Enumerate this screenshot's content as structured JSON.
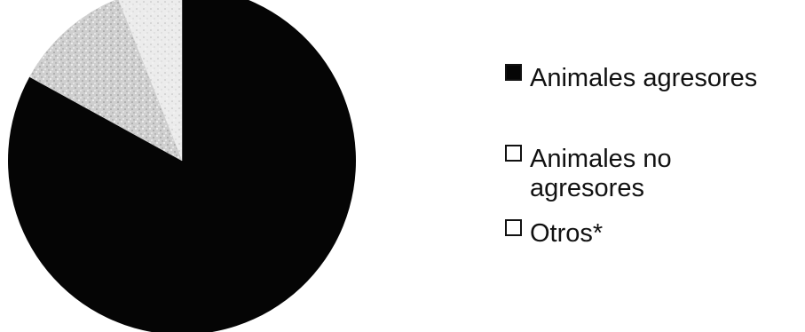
{
  "chart_data": {
    "type": "pie",
    "title": "",
    "slices": [
      {
        "label": "Animales agresores",
        "legend_lines": [
          "Animales agresores"
        ],
        "value": 83,
        "color": "#050505",
        "pattern": "solid"
      },
      {
        "label": "Animales no agresores",
        "legend_lines": [
          "Animales no",
          "agresores"
        ],
        "value": 11,
        "color": "#d9d9d9",
        "pattern": "speckle-light"
      },
      {
        "label": "Otros*",
        "legend_lines": [
          "Otros*"
        ],
        "value": 6,
        "color": "#eeeeee",
        "pattern": "speckle-lighter"
      }
    ],
    "start_angle": "top",
    "direction": "clockwise",
    "legend_position": "right",
    "data_labels": false
  }
}
